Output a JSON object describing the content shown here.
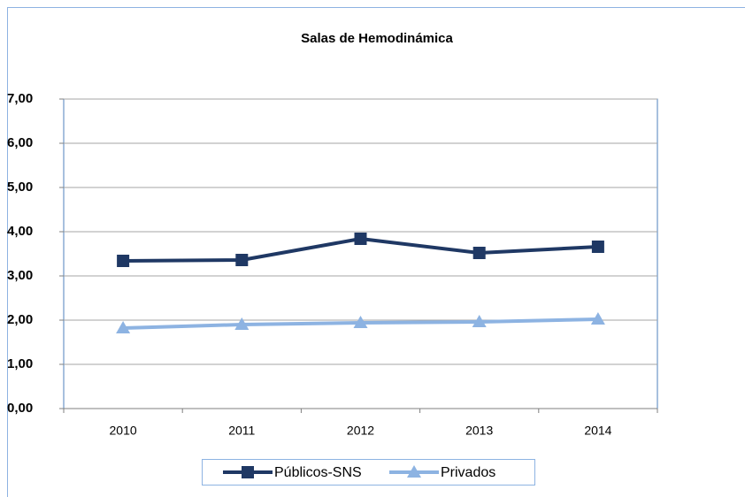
{
  "chart_data": {
    "type": "line",
    "title": "Salas de Hemodinámica",
    "categories": [
      "2010",
      "2011",
      "2012",
      "2013",
      "2014"
    ],
    "series": [
      {
        "name": "Públicos-SNS",
        "color": "#1f3864",
        "marker": "square",
        "values": [
          3.34,
          3.36,
          3.84,
          3.52,
          3.66
        ]
      },
      {
        "name": "Privados",
        "color": "#8db3e2",
        "marker": "triangle",
        "values": [
          1.82,
          1.9,
          1.94,
          1.96,
          2.02
        ]
      }
    ],
    "ylim": [
      0,
      7
    ],
    "yticks": [
      {
        "value": 0,
        "label": "0,00"
      },
      {
        "value": 1,
        "label": "1,00"
      },
      {
        "value": 2,
        "label": "2,00"
      },
      {
        "value": 3,
        "label": "3,00"
      },
      {
        "value": 4,
        "label": "4,00"
      },
      {
        "value": 5,
        "label": "5,00"
      },
      {
        "value": 6,
        "label": "6,00"
      },
      {
        "value": 7,
        "label": "7,00"
      }
    ],
    "grid": true,
    "legend": "bottom"
  }
}
